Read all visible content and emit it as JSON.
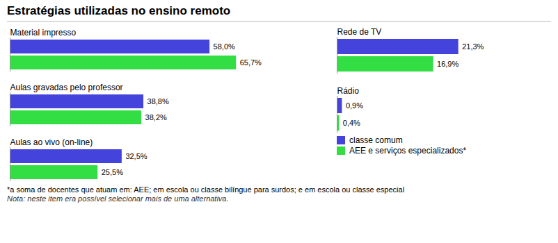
{
  "chart_data": [
    {
      "type": "bar",
      "orientation": "horizontal",
      "title": "Estratégias utilizadas no ensino remoto",
      "categories": [
        "Material impresso",
        "Aulas gravadas pelo professor",
        "Aulas ao vivo (on-line)"
      ],
      "series": [
        {
          "name": "classe comum",
          "color": "#4444dd",
          "values": [
            58.0,
            38.8,
            32.5
          ],
          "value_labels": [
            "58,0%",
            "38,8%",
            "32,5%"
          ]
        },
        {
          "name": "AEE e serviços especializados*",
          "color": "#33dd44",
          "values": [
            65.7,
            38.2,
            25.5
          ],
          "value_labels": [
            "65,7%",
            "38,2%",
            "25,5%"
          ]
        }
      ],
      "xlim": [
        0,
        80
      ],
      "data_labels": true,
      "tick_labels": false,
      "grid": false,
      "annotations": [
        "*a soma de docentes que atuam em: AEE; em escola ou classe bilíngue para surdos; e em escola ou classe especial",
        "Nota: neste item era possível selecionar mais de uma alternativa."
      ]
    },
    {
      "type": "bar",
      "orientation": "horizontal",
      "categories": [
        "Rede de TV",
        "Rádio"
      ],
      "series": [
        {
          "name": "classe comum",
          "color": "#4444dd",
          "values": [
            21.3,
            0.9
          ],
          "value_labels": [
            "21,3%",
            "0,9%"
          ]
        },
        {
          "name": "AEE e serviços especializados*",
          "color": "#33dd44",
          "values": [
            16.9,
            0.4
          ],
          "value_labels": [
            "16,9%",
            "0,4%"
          ]
        }
      ],
      "xlim": [
        0,
        30
      ],
      "data_labels": true,
      "tick_labels": false,
      "grid": false,
      "legend": "bottom"
    }
  ]
}
